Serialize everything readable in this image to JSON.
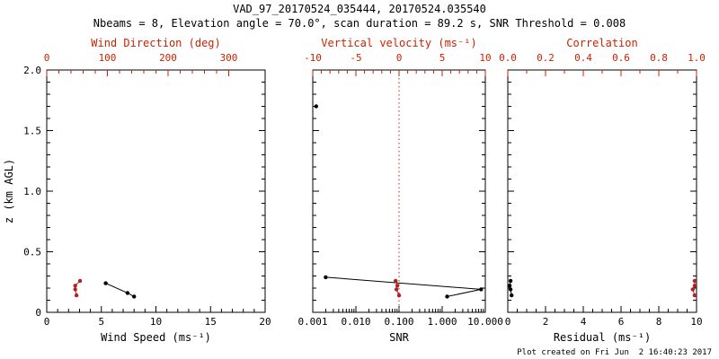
{
  "title": "VAD_97_20170524_035444, 20170524.035540",
  "subtitle": "Nbeams = 8, Elevation angle = 70.0°, scan duration = 89.2 s, SNR Threshold = 0.008",
  "credit": "Plot created on Fri Jun  2 16:40:23 2017",
  "colors": {
    "black": "#000000",
    "red": "#cc2200",
    "red_marker": "#b22222"
  },
  "chart_data": [
    {
      "type": "scatter",
      "title": "VAD wind speed / direction profile",
      "xlabel": "Wind Speed (ms⁻¹)",
      "x2label": "Wind Direction (deg)",
      "ylabel": "z (km AGL)",
      "xscale": "linear",
      "xlim": [
        0,
        20
      ],
      "x2lim": [
        0,
        360
      ],
      "ylim": [
        0,
        2.0
      ],
      "xticks": [
        0,
        5,
        10,
        15,
        20
      ],
      "xtick_labels": [
        "0",
        "5",
        "10",
        "15",
        "20"
      ],
      "x2ticks": [
        0,
        100,
        200,
        300
      ],
      "x2tick_labels": [
        "0",
        "100",
        "200",
        "300"
      ],
      "yticks": [
        0,
        0.5,
        1.0,
        1.5,
        2.0
      ],
      "ytick_labels": [
        "0",
        "0.5",
        "1.0",
        "1.5",
        "2.0"
      ],
      "xminor_div": 5,
      "x2minor_div": 5,
      "yminor_div": 5,
      "show_ytick_labels": true,
      "series": [
        {
          "name": "wind-speed",
          "axis": "bottom",
          "color": "black",
          "line": true,
          "points": [
            [
              5.4,
              0.24
            ],
            [
              7.4,
              0.16
            ],
            [
              8.0,
              0.13
            ]
          ]
        },
        {
          "name": "wind-direction",
          "axis": "top",
          "color": "red",
          "line": true,
          "points": [
            [
              55,
              0.26
            ],
            [
              47,
              0.22
            ],
            [
              47,
              0.19
            ],
            [
              49,
              0.14
            ]
          ]
        }
      ]
    },
    {
      "type": "scatter",
      "title": "SNR / vertical velocity profile",
      "xlabel": "SNR",
      "x2label": "Vertical velocity (ms⁻¹)",
      "ylabel": "z (km AGL)",
      "xscale": "log",
      "xlim": [
        0.001,
        10
      ],
      "x2lim": [
        -10,
        10
      ],
      "ylim": [
        0,
        2.0
      ],
      "xticks": [
        0.001,
        0.01,
        0.1,
        1,
        10
      ],
      "xtick_labels": [
        "0.001",
        "0.010",
        "0.100",
        "1.000",
        "10.000"
      ],
      "x2ticks": [
        -10,
        -5,
        0,
        5,
        10
      ],
      "x2tick_labels": [
        "-10",
        "-5",
        "0",
        "5",
        "10"
      ],
      "yticks": [
        0,
        0.5,
        1.0,
        1.5,
        2.0
      ],
      "ytick_labels": [],
      "x2minor_div": 5,
      "yminor_div": 5,
      "show_ytick_labels": false,
      "vline_top": 0,
      "series": [
        {
          "name": "snr-isolated",
          "axis": "bottom",
          "color": "black",
          "line": false,
          "points": [
            [
              0.0012,
              1.7
            ]
          ]
        },
        {
          "name": "snr-profile",
          "axis": "bottom",
          "color": "black",
          "line": true,
          "points": [
            [
              0.002,
              0.29
            ],
            [
              8.0,
              0.19
            ],
            [
              1.3,
              0.13
            ]
          ]
        },
        {
          "name": "vertical-velocity",
          "axis": "top",
          "color": "red",
          "line": true,
          "points": [
            [
              -0.4,
              0.26
            ],
            [
              -0.2,
              0.22
            ],
            [
              -0.3,
              0.19
            ],
            [
              0.0,
              0.14
            ]
          ]
        }
      ]
    },
    {
      "type": "scatter",
      "title": "Residual / correlation profile",
      "xlabel": "Residual (ms⁻¹)",
      "x2label": "Correlation",
      "ylabel": "z (km AGL)",
      "xscale": "linear",
      "xlim": [
        0,
        10
      ],
      "x2lim": [
        0,
        1.0
      ],
      "ylim": [
        0,
        2.0
      ],
      "xticks": [
        0,
        2,
        4,
        6,
        8,
        10
      ],
      "xtick_labels": [
        "0",
        "2",
        "4",
        "6",
        "8",
        "10"
      ],
      "x2ticks": [
        0,
        0.2,
        0.4,
        0.6,
        0.8,
        1.0
      ],
      "x2tick_labels": [
        "0.0",
        "0.2",
        "0.4",
        "0.6",
        "0.8",
        "1.0"
      ],
      "yticks": [
        0,
        0.5,
        1.0,
        1.5,
        2.0
      ],
      "ytick_labels": [],
      "xminor_div": 4,
      "x2minor_div": 2,
      "yminor_div": 5,
      "show_ytick_labels": false,
      "series": [
        {
          "name": "residual",
          "axis": "bottom",
          "color": "black",
          "line": true,
          "points": [
            [
              0.15,
              0.26
            ],
            [
              0.1,
              0.22
            ],
            [
              0.15,
              0.19
            ],
            [
              0.2,
              0.14
            ]
          ]
        },
        {
          "name": "correlation",
          "axis": "top",
          "color": "red",
          "line": true,
          "points": [
            [
              0.99,
              0.26
            ],
            [
              0.99,
              0.22
            ],
            [
              0.98,
              0.19
            ],
            [
              0.99,
              0.14
            ]
          ]
        }
      ]
    }
  ]
}
